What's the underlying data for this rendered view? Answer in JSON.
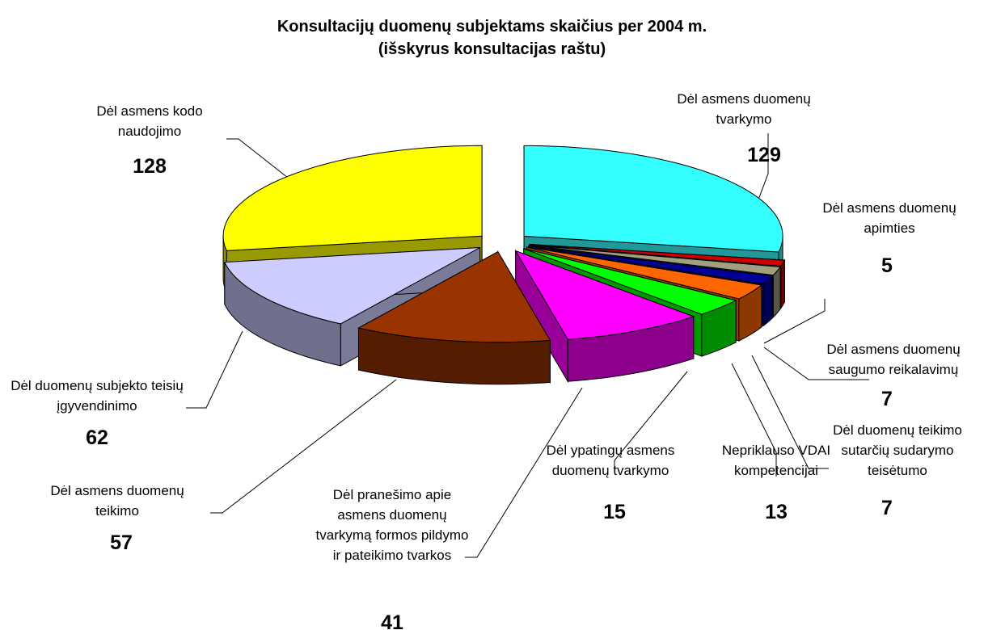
{
  "chart_data": {
    "type": "pie3d",
    "title": "Konsultacijų duomenų subjektams skaičius per 2004 m.",
    "subtitle": "(išskyrus konsultacijas raštu)",
    "categories": [
      "Dėl asmens duomenų tvarkymo",
      "Dėl asmens duomenų apimties",
      "Dėl asmens duomenų saugumo reikalavimų",
      "Dėl duomenų teikimo sutarčių sudarymo teisėtumo",
      "Nepriklauso VDAI kompetencijai",
      "Dėl ypatingų asmens duomenų tvarkymo",
      "Dėl pranešimo apie asmens duomenų tvarkymą formos pildymo ir pateikimo tvarkos",
      "Dėl asmens duomenų teikimo",
      "Dėl duomenų subjekto teisių įgyvendinimo",
      "Dėl asmens kodo naudojimo"
    ],
    "values": [
      129,
      5,
      7,
      7,
      13,
      15,
      41,
      57,
      62,
      128
    ],
    "colors": [
      "#33ffff",
      "#cc0000",
      "#a0a080",
      "#000099",
      "#ff6600",
      "#00ff00",
      "#ff00ff",
      "#993300",
      "#ccccff",
      "#ffff00"
    ]
  }
}
